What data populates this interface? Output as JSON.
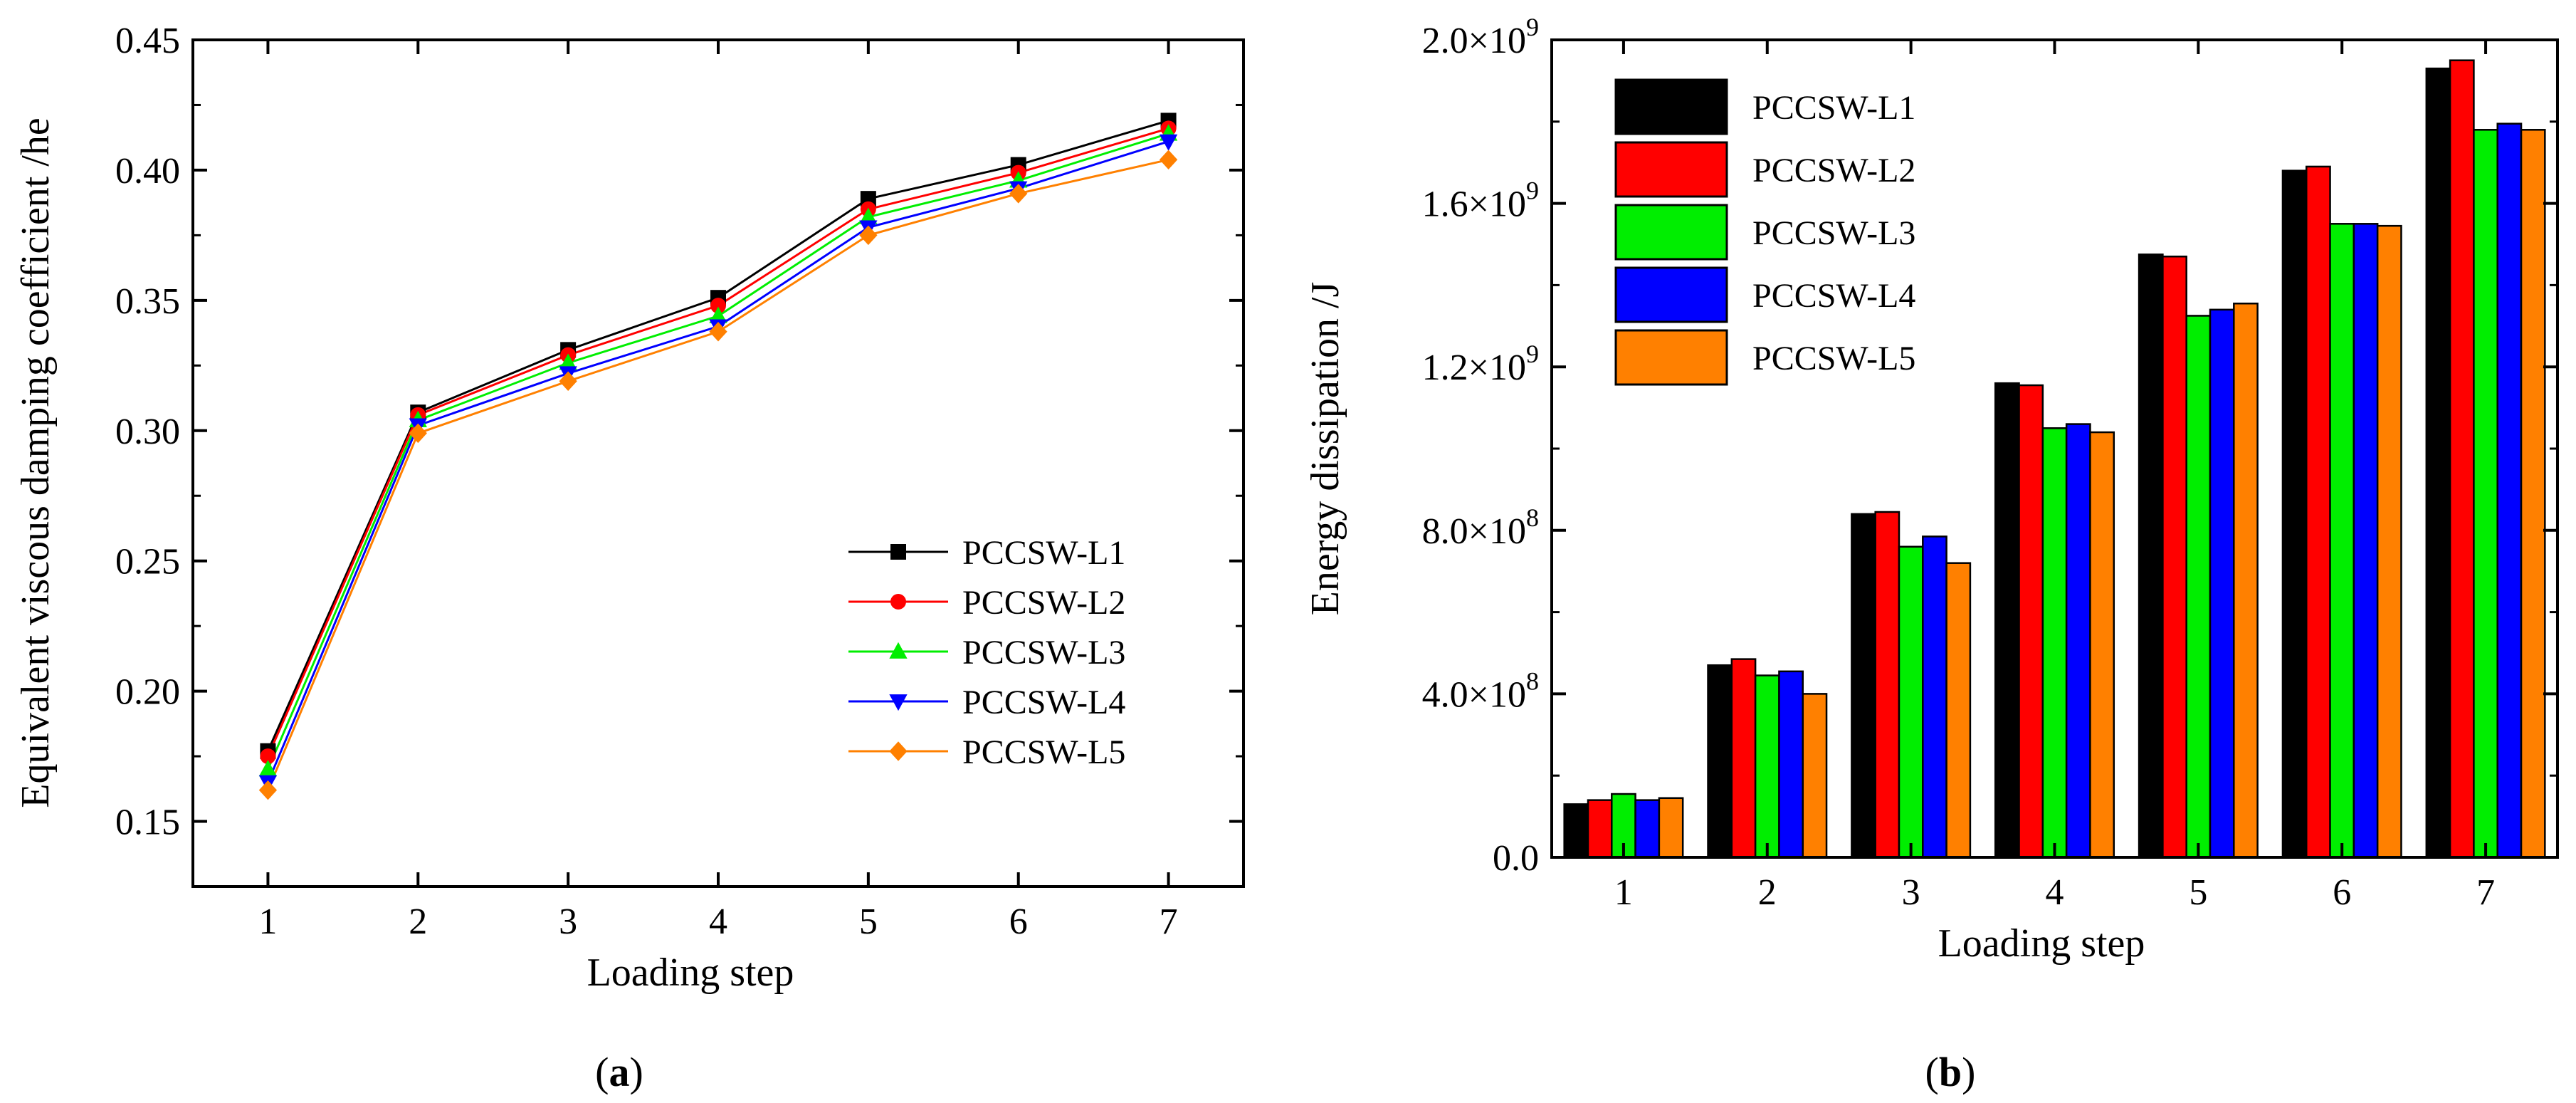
{
  "chart_data": [
    {
      "type": "line",
      "panel_label": "a",
      "xlabel": "Loading step",
      "ylabel": "Equivalent viscous damping coefficient /he",
      "x": [
        1,
        2,
        3,
        4,
        5,
        6,
        7
      ],
      "xticks": [
        "1",
        "2",
        "3",
        "4",
        "5",
        "6",
        "7"
      ],
      "xlim": [
        0.5,
        7.5
      ],
      "ylim": [
        0.125,
        0.45
      ],
      "yticks": [
        "0.15",
        "0.20",
        "0.25",
        "0.30",
        "0.35",
        "0.40",
        "0.45"
      ],
      "grid": false,
      "legend_position": "bottom-right",
      "series": [
        {
          "name": "PCCSW-L1",
          "color": "#000000",
          "marker": "square",
          "values": [
            0.177,
            0.307,
            0.331,
            0.351,
            0.389,
            0.402,
            0.419
          ]
        },
        {
          "name": "PCCSW-L2",
          "color": "#ff0000",
          "marker": "circle",
          "values": [
            0.175,
            0.306,
            0.329,
            0.348,
            0.385,
            0.399,
            0.416
          ]
        },
        {
          "name": "PCCSW-L3",
          "color": "#00ee00",
          "marker": "triangle-up",
          "values": [
            0.17,
            0.304,
            0.326,
            0.344,
            0.382,
            0.396,
            0.414
          ]
        },
        {
          "name": "PCCSW-L4",
          "color": "#0000ff",
          "marker": "triangle-down",
          "values": [
            0.165,
            0.302,
            0.322,
            0.34,
            0.378,
            0.393,
            0.411
          ]
        },
        {
          "name": "PCCSW-L5",
          "color": "#ff8000",
          "marker": "diamond",
          "values": [
            0.162,
            0.299,
            0.319,
            0.338,
            0.375,
            0.391,
            0.404
          ]
        }
      ]
    },
    {
      "type": "bar",
      "panel_label": "b",
      "xlabel": "Loading step",
      "ylabel": "Energy dissipation /J",
      "categories": [
        "1",
        "2",
        "3",
        "4",
        "5",
        "6",
        "7"
      ],
      "xlim": [
        0.5,
        7.5
      ],
      "ylim": [
        0,
        2000000000
      ],
      "yticks": [
        {
          "value": 0,
          "mantissa": "0.0",
          "exp": ""
        },
        {
          "value": 400000000,
          "mantissa": "4.0×10",
          "exp": "8"
        },
        {
          "value": 800000000,
          "mantissa": "8.0×10",
          "exp": "8"
        },
        {
          "value": 1200000000,
          "mantissa": "1.2×10",
          "exp": "9"
        },
        {
          "value": 1600000000,
          "mantissa": "1.6×10",
          "exp": "9"
        },
        {
          "value": 2000000000,
          "mantissa": "2.0×10",
          "exp": "9"
        }
      ],
      "grid": false,
      "legend_position": "top-left",
      "series": [
        {
          "name": "PCCSW-L1",
          "color": "#000000",
          "values": [
            130000000,
            470000000,
            840000000,
            1160000000,
            1475000000,
            1680000000,
            1930000000
          ]
        },
        {
          "name": "PCCSW-L2",
          "color": "#ff0000",
          "values": [
            140000000,
            485000000,
            845000000,
            1155000000,
            1470000000,
            1690000000,
            1950000000
          ]
        },
        {
          "name": "PCCSW-L3",
          "color": "#00ee00",
          "values": [
            155000000,
            445000000,
            760000000,
            1050000000,
            1325000000,
            1550000000,
            1780000000
          ]
        },
        {
          "name": "PCCSW-L4",
          "color": "#0000ff",
          "values": [
            140000000,
            455000000,
            785000000,
            1060000000,
            1340000000,
            1550000000,
            1795000000
          ]
        },
        {
          "name": "PCCSW-L5",
          "color": "#ff8000",
          "values": [
            145000000,
            400000000,
            720000000,
            1040000000,
            1355000000,
            1545000000,
            1780000000
          ]
        }
      ]
    }
  ]
}
